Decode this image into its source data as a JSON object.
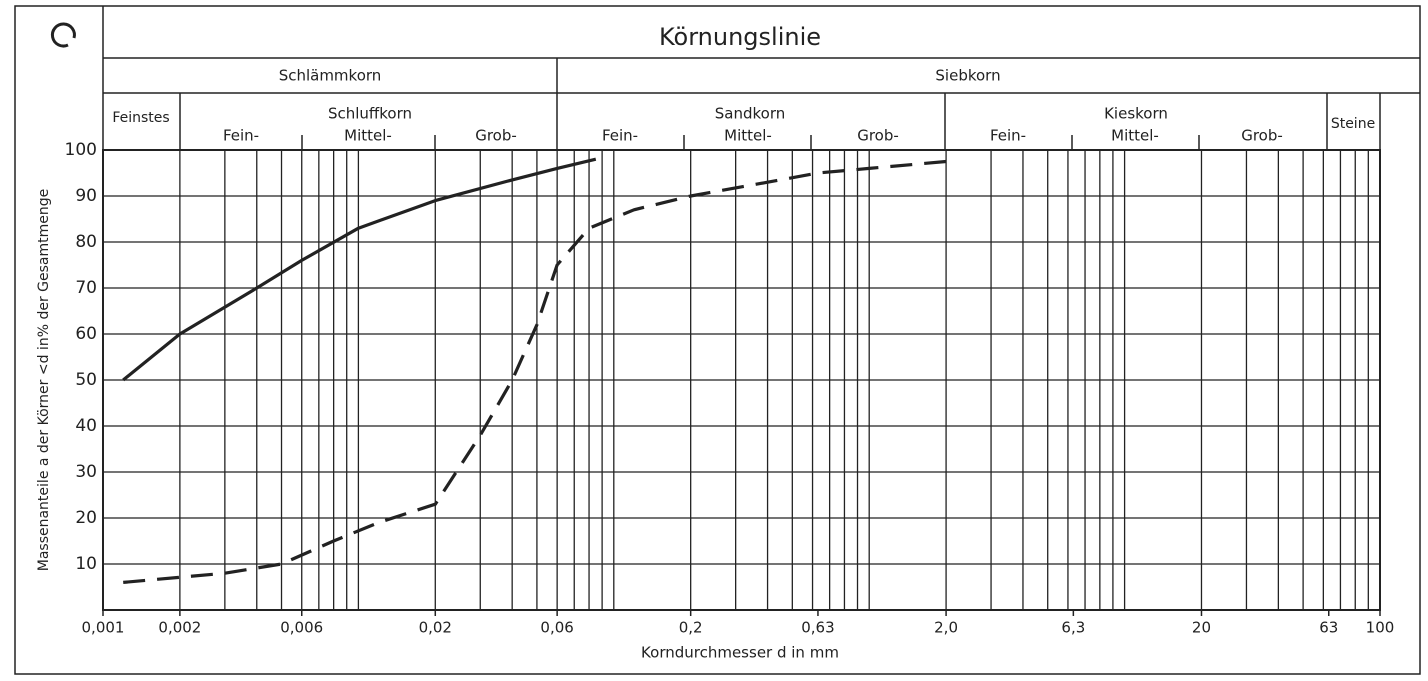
{
  "header": {
    "title": "Körnungslinie",
    "group_1": "Schlämmkorn",
    "group_2": "Siebkorn",
    "feinstes": "Feinstes",
    "schluff": "Schluffkorn",
    "sand": "Sandkorn",
    "kies": "Kieskorn",
    "steine": "Steine",
    "schluff_fein": "Fein-",
    "schluff_mittel": "Mittel-",
    "schluff_grob": "Grob-",
    "sand_fein": "Fein-",
    "sand_mittel": "Mittel-",
    "sand_grob": "Grob-",
    "kies_fein": "Fein-",
    "kies_mittel": "Mittel-",
    "kies_grob": "Grob-"
  },
  "chart_data": {
    "type": "line",
    "x_label": "Korndurchmesser d in mm",
    "y_label": "Massenanteile a der Körner <d in% der Gesamtmenge",
    "log_x": true,
    "grid": true,
    "color": "#222",
    "xlim": [
      0.001,
      100
    ],
    "ylim": [
      0,
      100
    ],
    "xticks": [
      {
        "value": 0.001,
        "label": "0,001"
      },
      {
        "value": 0.002,
        "label": "0,002"
      },
      {
        "value": 0.006,
        "label": "0,006"
      },
      {
        "value": 0.02,
        "label": "0,02"
      },
      {
        "value": 0.06,
        "label": "0,06"
      },
      {
        "value": 0.2,
        "label": "0,2"
      },
      {
        "value": 0.63,
        "label": "0,63"
      },
      {
        "value": 2,
        "label": "2,0"
      },
      {
        "value": 6.3,
        "label": "6,3"
      },
      20,
      63,
      100
    ],
    "xgrid": [
      0.001,
      0.002,
      0.003,
      0.004,
      0.005,
      0.006,
      0.007,
      0.008,
      0.009,
      0.01,
      0.02,
      0.03,
      0.04,
      0.05,
      0.06,
      0.07,
      0.08,
      0.09,
      0.1,
      0.2,
      0.3,
      0.4,
      0.5,
      0.6,
      0.7,
      0.8,
      0.9,
      1,
      2,
      3,
      4,
      5,
      6,
      7,
      8,
      9,
      10,
      20,
      30,
      40,
      50,
      60,
      70,
      80,
      90,
      100
    ],
    "yticks": [
      10,
      20,
      30,
      40,
      50,
      60,
      70,
      80,
      90,
      100
    ],
    "series": [
      {
        "style": "solid",
        "x": [
          0.0012,
          0.002,
          0.004,
          0.006,
          0.01,
          0.02,
          0.04,
          0.06,
          0.085
        ],
        "values": [
          50,
          60,
          70,
          76,
          83,
          89,
          93.5,
          96,
          98
        ]
      },
      {
        "style": "dashed",
        "x": [
          0.0012,
          0.003,
          0.005,
          0.008,
          0.012,
          0.02,
          0.03,
          0.04,
          0.05,
          0.06,
          0.08,
          0.12,
          0.2,
          0.4,
          0.63,
          1,
          2
        ],
        "values": [
          6,
          8,
          10,
          15,
          19,
          23,
          38,
          50,
          62,
          75,
          83,
          87,
          90,
          93,
          95,
          96,
          97.5
        ]
      }
    ]
  }
}
